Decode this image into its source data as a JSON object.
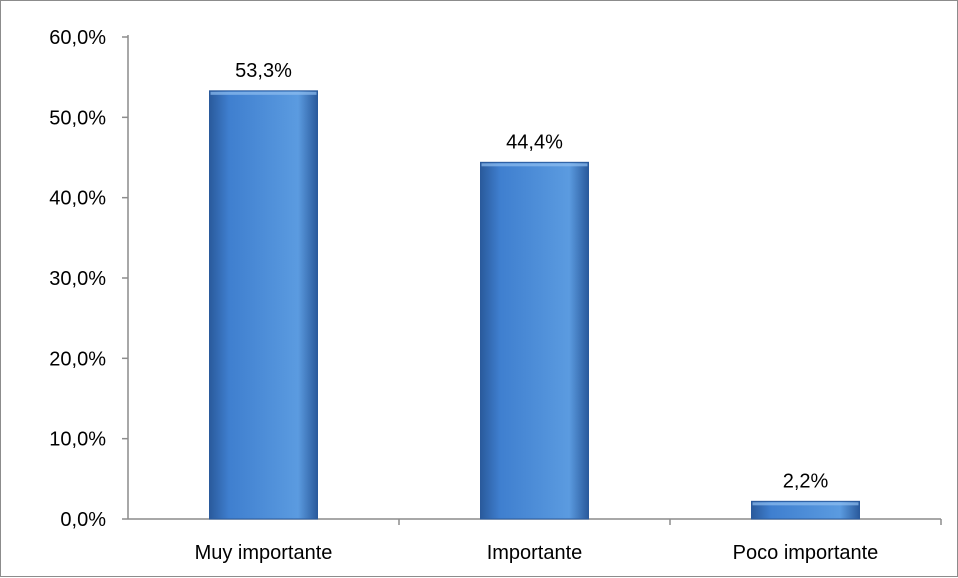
{
  "chart_data": {
    "type": "bar",
    "categories": [
      "Muy importante",
      "Importante",
      "Poco importante"
    ],
    "values": [
      53.3,
      44.4,
      2.2
    ],
    "data_labels": [
      "53,3%",
      "44,4%",
      "2,2%"
    ],
    "title": "",
    "xlabel": "",
    "ylabel": "",
    "ylim": [
      0,
      60
    ],
    "yticks": [
      0,
      10,
      20,
      30,
      40,
      50,
      60
    ],
    "ytick_labels": [
      "0,0%",
      "10,0%",
      "20,0%",
      "30,0%",
      "40,0%",
      "50,0%",
      "60,0%"
    ],
    "grid": false,
    "legend": "none",
    "colors": {
      "bar_light": "#5b9be0",
      "bar_main": "#3f7fcf",
      "bar_dark": "#2a5a9c",
      "axis": "#8c8c8c",
      "frame": "#8c8c8c"
    }
  }
}
